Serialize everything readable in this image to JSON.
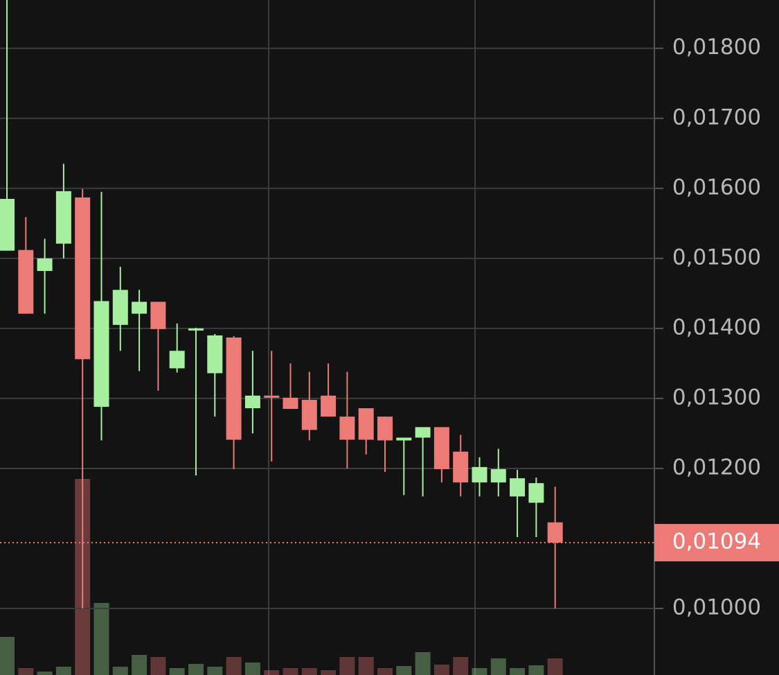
{
  "chart_data": {
    "type": "candlestick",
    "open": [
      0.01511,
      0.01512,
      0.01482,
      0.01521,
      0.01587,
      0.01288,
      0.01405,
      0.01421,
      0.01438,
      0.01343,
      0.01397,
      0.01336,
      0.01387,
      0.01286,
      0.01304,
      0.01301,
      0.01298,
      0.01304,
      0.01274,
      0.01286,
      0.01274,
      0.0124,
      0.01244,
      0.01259,
      0.01224,
      0.0118,
      0.0118,
      0.0116,
      0.01151,
      0.01123
    ],
    "high": [
      0.01869,
      0.01559,
      0.01528,
      0.01635,
      0.01599,
      0.01595,
      0.01488,
      0.01455,
      0.01438,
      0.01407,
      0.01401,
      0.01392,
      0.01389,
      0.01368,
      0.01368,
      0.0135,
      0.01338,
      0.0135,
      0.01338,
      0.01286,
      0.01274,
      0.01244,
      0.01259,
      0.01259,
      0.01248,
      0.01216,
      0.01228,
      0.01198,
      0.01187,
      0.01174
    ],
    "low": [
      0.01511,
      0.01421,
      0.01421,
      0.015,
      0.01,
      0.0124,
      0.01368,
      0.01339,
      0.01311,
      0.01337,
      0.0119,
      0.01274,
      0.01199,
      0.0125,
      0.0121,
      0.01285,
      0.0124,
      0.01274,
      0.012,
      0.0122,
      0.01195,
      0.01162,
      0.0116,
      0.0118,
      0.0116,
      0.0116,
      0.0116,
      0.01102,
      0.01102,
      0.01
    ],
    "close": [
      0.01585,
      0.01421,
      0.015,
      0.01596,
      0.01356,
      0.01439,
      0.01455,
      0.01438,
      0.01399,
      0.01368,
      0.014,
      0.0139,
      0.01241,
      0.01304,
      0.01301,
      0.01285,
      0.01255,
      0.01274,
      0.01241,
      0.01241,
      0.0124,
      0.01244,
      0.01259,
      0.01199,
      0.0118,
      0.01202,
      0.01199,
      0.01186,
      0.01179,
      0.01094
    ],
    "volume": [
      55,
      10,
      5,
      12,
      283,
      104,
      12,
      29,
      26,
      10,
      16,
      12,
      26,
      18,
      7,
      10,
      10,
      7,
      26,
      26,
      10,
      13,
      33,
      15,
      26,
      10,
      24,
      10,
      14,
      24
    ],
    "up_color": "#a6eea0",
    "down_color": "#ec7b78",
    "ylim": [
      0.00905,
      0.01869
    ],
    "yticks": [
      {
        "value": 0.018,
        "label": "0,01800"
      },
      {
        "value": 0.017,
        "label": "0,01700"
      },
      {
        "value": 0.016,
        "label": "0,01600"
      },
      {
        "value": 0.015,
        "label": "0,01500"
      },
      {
        "value": 0.014,
        "label": "0,01400"
      },
      {
        "value": 0.013,
        "label": "0,01300"
      },
      {
        "value": 0.012,
        "label": "0,01200"
      },
      {
        "value": 0.01,
        "label": "0,01000"
      }
    ],
    "last_price": {
      "value": 0.01094,
      "label": "0,01094"
    },
    "grid": true
  }
}
